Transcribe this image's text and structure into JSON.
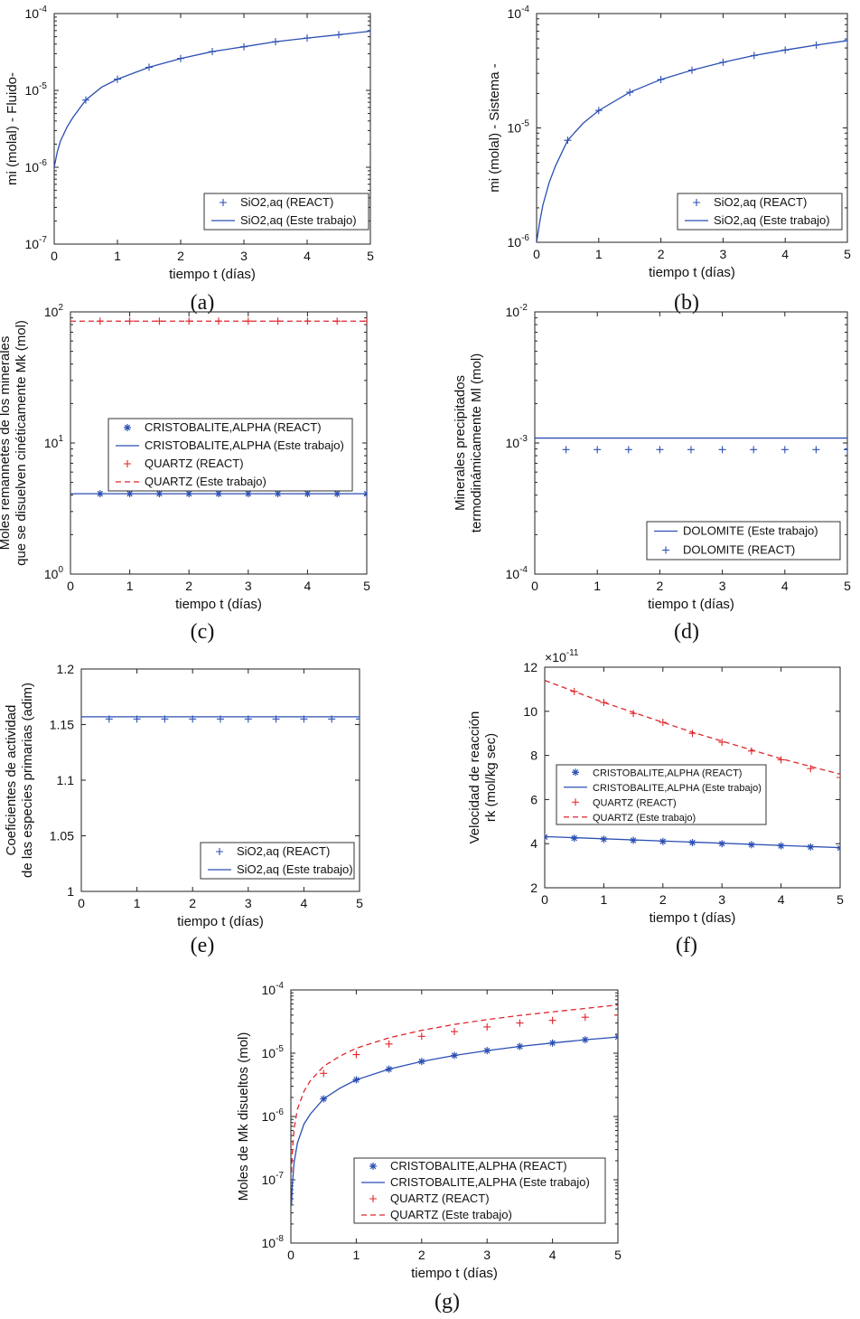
{
  "colors": {
    "blue": "#2b4fb3",
    "red": "#e0262b",
    "axis": "#222222",
    "legend_border": "#333333"
  },
  "chart_data": [
    {
      "id": "a",
      "caption": "(a)",
      "type": "line",
      "ylog": true,
      "xlabel": "tiempo t (días)",
      "ylabel": "mi (molal) - Fluido-",
      "xlim": [
        0,
        5
      ],
      "ylim_exp": [
        -7,
        -4
      ],
      "xticks": [
        "0",
        "1",
        "2",
        "3",
        "4",
        "5"
      ],
      "yticks": [
        {
          "base": "10",
          "exp": "-7"
        },
        {
          "base": "10",
          "exp": "-6"
        },
        {
          "base": "10",
          "exp": "-5"
        },
        {
          "base": "10",
          "exp": "-4"
        }
      ],
      "legend_position": "bottom-right",
      "series": [
        {
          "name": "SiO2,aq (REACT)",
          "style": "marker",
          "marker": "plus",
          "color": "blue",
          "x": [
            0.5,
            1,
            1.5,
            2,
            2.5,
            3,
            3.5,
            4,
            4.5,
            5
          ],
          "y": [
            7.5e-06,
            1.4e-05,
            2e-05,
            2.6e-05,
            3.2e-05,
            3.7e-05,
            4.3e-05,
            4.8e-05,
            5.3e-05,
            5.9e-05
          ]
        },
        {
          "name": "SiO2,aq (Este trabajo)",
          "style": "line",
          "color": "blue",
          "x": [
            0,
            0.05,
            0.1,
            0.2,
            0.3,
            0.5,
            0.75,
            1,
            1.5,
            2,
            2.5,
            3,
            3.5,
            4,
            4.5,
            5
          ],
          "y": [
            1e-06,
            1.6e-06,
            2.2e-06,
            3.3e-06,
            4.5e-06,
            7.5e-06,
            1.1e-05,
            1.4e-05,
            2e-05,
            2.6e-05,
            3.2e-05,
            3.7e-05,
            4.3e-05,
            4.8e-05,
            5.3e-05,
            5.9e-05
          ]
        }
      ]
    },
    {
      "id": "b",
      "caption": "(b)",
      "type": "line",
      "ylog": true,
      "xlabel": "tiempo t (días)",
      "ylabel": "mi (molal) - Sistema -",
      "xlim": [
        0,
        5
      ],
      "ylim_exp": [
        -6,
        -4
      ],
      "xticks": [
        "0",
        "1",
        "2",
        "3",
        "4",
        "5"
      ],
      "yticks": [
        {
          "base": "10",
          "exp": "-6"
        },
        {
          "base": "10",
          "exp": "-5"
        },
        {
          "base": "10",
          "exp": "-4"
        }
      ],
      "legend_position": "bottom-right",
      "series": [
        {
          "name": "SiO2,aq (REACT)",
          "style": "marker",
          "marker": "plus",
          "color": "blue",
          "x": [
            0.5,
            1,
            1.5,
            2,
            2.5,
            3,
            3.5,
            4,
            4.5,
            5
          ],
          "y": [
            7.8e-06,
            1.42e-05,
            2.05e-05,
            2.65e-05,
            3.2e-05,
            3.75e-05,
            4.3e-05,
            4.8e-05,
            5.3e-05,
            5.8e-05
          ]
        },
        {
          "name": "SiO2,aq (Este trabajo)",
          "style": "line",
          "color": "blue",
          "x": [
            0,
            0.05,
            0.1,
            0.2,
            0.3,
            0.5,
            0.75,
            1,
            1.5,
            2,
            2.5,
            3,
            3.5,
            4,
            4.5,
            5
          ],
          "y": [
            1e-06,
            1.5e-06,
            2.1e-06,
            3.3e-06,
            4.6e-06,
            7.8e-06,
            1.1e-05,
            1.42e-05,
            2.05e-05,
            2.65e-05,
            3.2e-05,
            3.75e-05,
            4.3e-05,
            4.8e-05,
            5.3e-05,
            5.8e-05
          ]
        }
      ]
    },
    {
      "id": "c",
      "caption": "(c)",
      "type": "line",
      "ylog": true,
      "xlabel": "tiempo t (días)",
      "ylabel": "Moles remannetes de los minerales",
      "ylabel2": "que se disuelven cinéticamente Mk (mol)",
      "xlim": [
        0,
        5
      ],
      "ylim_exp": [
        0,
        2
      ],
      "xticks": [
        "0",
        "1",
        "2",
        "3",
        "4",
        "5"
      ],
      "yticks": [
        {
          "base": "10",
          "exp": "0"
        },
        {
          "base": "10",
          "exp": "1"
        },
        {
          "base": "10",
          "exp": "2"
        }
      ],
      "legend_position": "center",
      "series": [
        {
          "name": "CRISTOBALITE,ALPHA (REACT)",
          "style": "marker",
          "marker": "star",
          "color": "blue",
          "x": [
            0.5,
            1,
            1.5,
            2,
            2.5,
            3,
            3.5,
            4,
            4.5,
            5
          ],
          "y": [
            4.1,
            4.1,
            4.1,
            4.1,
            4.1,
            4.1,
            4.1,
            4.1,
            4.1,
            4.1
          ]
        },
        {
          "name": "CRISTOBALITE,ALPHA (Este trabajo)",
          "style": "line",
          "color": "blue",
          "x": [
            0,
            5
          ],
          "y": [
            4.1,
            4.1
          ]
        },
        {
          "name": "QUARTZ (REACT)",
          "style": "marker",
          "marker": "plus",
          "color": "red",
          "x": [
            0.5,
            1,
            1.5,
            2,
            2.5,
            3,
            3.5,
            4,
            4.5,
            5
          ],
          "y": [
            85,
            85,
            85,
            85,
            85,
            85,
            85,
            85,
            85,
            85
          ]
        },
        {
          "name": "QUARTZ (Este trabajo)",
          "style": "dashed",
          "color": "red",
          "x": [
            0,
            5
          ],
          "y": [
            85,
            85
          ]
        }
      ]
    },
    {
      "id": "d",
      "caption": "(d)",
      "type": "line",
      "ylog": true,
      "xlabel": "tiempo t (días)",
      "ylabel": "Minerales precipitados",
      "ylabel2": "termodinámicamente Ml (mol)",
      "xlim": [
        0,
        5
      ],
      "ylim_exp": [
        -4,
        -2
      ],
      "xticks": [
        "0",
        "1",
        "2",
        "3",
        "4",
        "5"
      ],
      "yticks": [
        {
          "base": "10",
          "exp": "-4"
        },
        {
          "base": "10",
          "exp": "-3"
        },
        {
          "base": "10",
          "exp": "-2"
        }
      ],
      "legend_position": "bottom-right",
      "series": [
        {
          "name": "DOLOMITE (Este trabajo)",
          "style": "line",
          "color": "blue",
          "x": [
            0,
            5
          ],
          "y": [
            0.00109,
            0.00109
          ]
        },
        {
          "name": "DOLOMITE (REACT)",
          "style": "marker",
          "marker": "plus",
          "color": "blue",
          "x": [
            0.5,
            1,
            1.5,
            2,
            2.5,
            3,
            3.5,
            4,
            4.5,
            5
          ],
          "y": [
            0.00089,
            0.00089,
            0.00089,
            0.00089,
            0.00089,
            0.00089,
            0.00089,
            0.00089,
            0.00089,
            0.00089
          ]
        }
      ]
    },
    {
      "id": "e",
      "caption": "(e)",
      "type": "line",
      "ylog": false,
      "xlabel": "tiempo t (días)",
      "ylabel": "Coeficientes de actividad",
      "ylabel2": "de las especies primarias (adim)",
      "xlim": [
        0,
        5
      ],
      "ylim": [
        1,
        1.2
      ],
      "xticks": [
        "0",
        "1",
        "2",
        "3",
        "4",
        "5"
      ],
      "yticks": [
        "1",
        "1.05",
        "1.1",
        "1.15",
        "1.2"
      ],
      "legend_position": "bottom-right",
      "series": [
        {
          "name": "SiO2,aq (REACT)",
          "style": "marker",
          "marker": "plus",
          "color": "blue",
          "x": [
            0.5,
            1,
            1.5,
            2,
            2.5,
            3,
            3.5,
            4,
            4.5,
            5
          ],
          "y": [
            1.155,
            1.155,
            1.155,
            1.155,
            1.155,
            1.155,
            1.155,
            1.155,
            1.155,
            1.155
          ]
        },
        {
          "name": "SiO2,aq (Este trabajo)",
          "style": "line",
          "color": "blue",
          "x": [
            0,
            5
          ],
          "y": [
            1.157,
            1.157
          ]
        }
      ]
    },
    {
      "id": "f",
      "caption": "(f)",
      "type": "line",
      "ylog": false,
      "xlabel": "tiempo t (días)",
      "ylabel": "Velocidad de reacción",
      "ylabel2": "rk (mol/kg sec)",
      "multiplier": {
        "base": "×10",
        "exp": "-11"
      },
      "xlim": [
        0,
        5
      ],
      "ylim": [
        2,
        12
      ],
      "xticks": [
        "0",
        "1",
        "2",
        "3",
        "4",
        "5"
      ],
      "yticks": [
        "2",
        "4",
        "6",
        "8",
        "10",
        "12"
      ],
      "legend_position": "center-right",
      "series": [
        {
          "name": "CRISTOBALITE,ALPHA (REACT)",
          "style": "marker",
          "marker": "star",
          "color": "blue",
          "x": [
            0,
            0.5,
            1,
            1.5,
            2,
            2.5,
            3,
            3.5,
            4,
            4.5,
            5
          ],
          "y": [
            4.3,
            4.25,
            4.2,
            4.15,
            4.1,
            4.05,
            4.0,
            3.95,
            3.9,
            3.85,
            3.8
          ]
        },
        {
          "name": "CRISTOBALITE,ALPHA (Este trabajo)",
          "style": "line",
          "color": "blue",
          "x": [
            0,
            5
          ],
          "y": [
            4.32,
            3.82
          ]
        },
        {
          "name": "QUARTZ (REACT)",
          "style": "marker",
          "marker": "plus",
          "color": "red",
          "x": [
            0.5,
            1,
            1.5,
            2,
            2.5,
            3,
            3.5,
            4,
            4.5,
            5
          ],
          "y": [
            10.9,
            10.4,
            9.9,
            9.5,
            9.0,
            8.6,
            8.2,
            7.8,
            7.4,
            7.0
          ]
        },
        {
          "name": "QUARTZ (Este trabajo)",
          "style": "dashed",
          "color": "red",
          "x": [
            0,
            0.5,
            1,
            1.5,
            2,
            2.5,
            3,
            3.5,
            4,
            4.5,
            5
          ],
          "y": [
            11.4,
            10.9,
            10.4,
            9.95,
            9.5,
            9.05,
            8.65,
            8.25,
            7.85,
            7.5,
            7.15
          ]
        }
      ]
    },
    {
      "id": "g",
      "caption": "(g)",
      "type": "line",
      "ylog": true,
      "xlabel": "tiempo t (días)",
      "ylabel": "Moles de Mk disueltos (mol)",
      "xlim": [
        0,
        5
      ],
      "ylim_exp": [
        -8,
        -4
      ],
      "xticks": [
        "0",
        "1",
        "2",
        "3",
        "4",
        "5"
      ],
      "yticks": [
        {
          "base": "10",
          "exp": "-8"
        },
        {
          "base": "10",
          "exp": "-7"
        },
        {
          "base": "10",
          "exp": "-6"
        },
        {
          "base": "10",
          "exp": "-5"
        },
        {
          "base": "10",
          "exp": "-4"
        }
      ],
      "legend_position": "bottom-right",
      "series": [
        {
          "name": "CRISTOBALITE,ALPHA (REACT)",
          "style": "marker",
          "marker": "star",
          "color": "blue",
          "x": [
            0.5,
            1,
            1.5,
            2,
            2.5,
            3,
            3.5,
            4,
            4.5,
            5
          ],
          "y": [
            1.9e-06,
            3.8e-06,
            5.6e-06,
            7.4e-06,
            9.2e-06,
            1.1e-05,
            1.28e-05,
            1.45e-05,
            1.63e-05,
            1.8e-05
          ]
        },
        {
          "name": "CRISTOBALITE,ALPHA (Este trabajo)",
          "style": "line",
          "color": "blue",
          "x": [
            0.01,
            0.02,
            0.05,
            0.1,
            0.2,
            0.3,
            0.5,
            0.75,
            1,
            1.5,
            2,
            2.5,
            3,
            3.5,
            4,
            4.5,
            5
          ],
          "y": [
            4e-08,
            8e-08,
            1.9e-07,
            3.8e-07,
            7.6e-07,
            1.1e-06,
            1.9e-06,
            2.8e-06,
            3.8e-06,
            5.6e-06,
            7.4e-06,
            9.2e-06,
            1.1e-05,
            1.28e-05,
            1.45e-05,
            1.63e-05,
            1.8e-05
          ]
        },
        {
          "name": "QUARTZ (REACT)",
          "style": "marker",
          "marker": "plus",
          "color": "red",
          "x": [
            0.5,
            1,
            1.5,
            2,
            2.5,
            3,
            3.5,
            4,
            4.5,
            5
          ],
          "y": [
            4.8e-06,
            9.5e-06,
            1.4e-05,
            1.85e-05,
            2.2e-05,
            2.6e-05,
            3e-05,
            3.3e-05,
            3.7e-05,
            4e-05
          ]
        },
        {
          "name": "QUARTZ (Este trabajo)",
          "style": "dashed",
          "color": "red",
          "x": [
            0.01,
            0.02,
            0.05,
            0.1,
            0.2,
            0.3,
            0.5,
            0.75,
            1,
            1.5,
            2,
            2.5,
            3,
            3.5,
            4,
            4.5,
            5
          ],
          "y": [
            1.3e-07,
            2.6e-07,
            6.5e-07,
            1.3e-06,
            2.5e-06,
            3.7e-06,
            6.2e-06,
            9e-06,
            1.2e-05,
            1.75e-05,
            2.3e-05,
            2.85e-05,
            3.4e-05,
            3.95e-05,
            4.5e-05,
            5.1e-05,
            5.8e-05
          ]
        }
      ]
    }
  ]
}
